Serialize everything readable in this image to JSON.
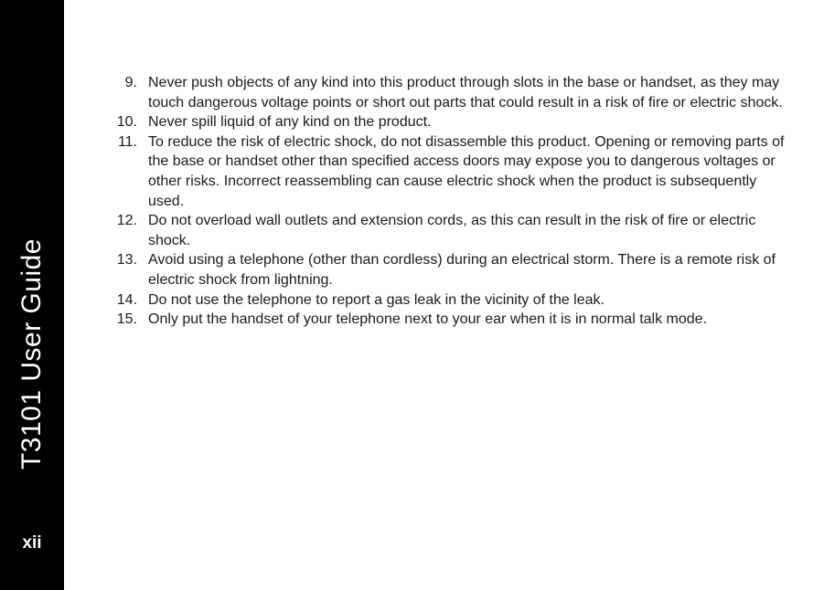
{
  "sidebar": {
    "title": "T3101 User Guide",
    "page": "xii"
  },
  "items": [
    {
      "number": "9.",
      "text": "Never push objects of any kind into this product through slots in the base or handset, as they may touch dangerous voltage points or short out parts that could result in a risk of fire or electric shock."
    },
    {
      "number": "10.",
      "text": "Never spill liquid of any kind on the product."
    },
    {
      "number": "11.",
      "text": "To reduce the risk of electric shock, do not disassemble this product. Opening or removing parts of the base or handset other than specified access doors may expose you to dangerous voltages or other risks. Incorrect reassembling can cause electric shock when the product is subsequently used."
    },
    {
      "number": "12.",
      "text": "Do not overload wall outlets and extension cords, as this can result in the risk of fire or electric shock."
    },
    {
      "number": "13.",
      "text": "Avoid using a telephone (other than cordless) during an electrical storm. There is a remote risk of electric shock from lightning."
    },
    {
      "number": "14.",
      "text": "Do not use the telephone to report a gas leak in the vicinity of the leak."
    },
    {
      "number": "15.",
      "text": "Only put the handset of your telephone next to your ear when it is in normal talk mode."
    }
  ]
}
